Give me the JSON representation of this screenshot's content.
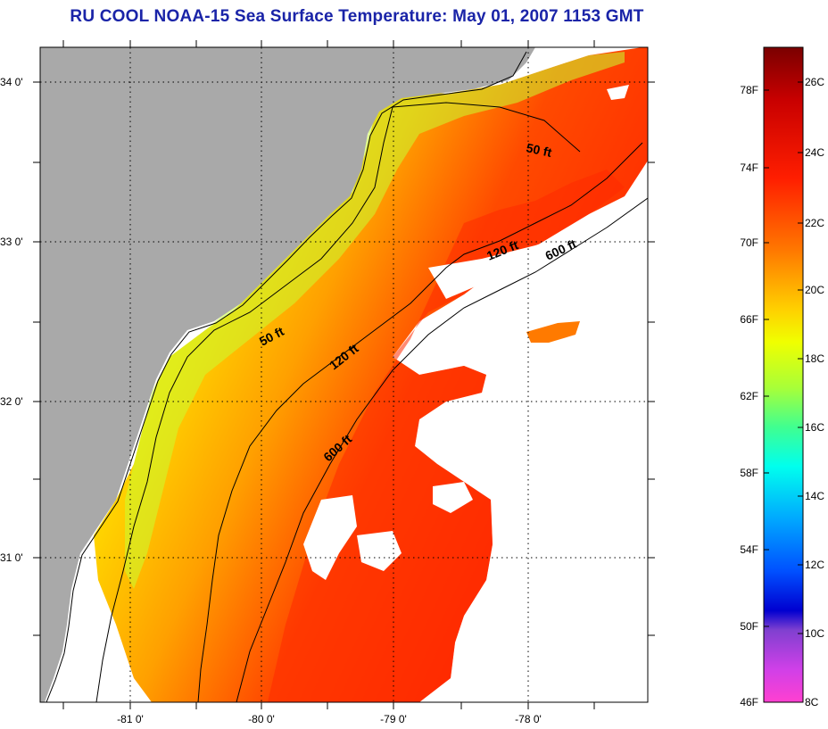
{
  "title": "RU COOL  NOAA-15  Sea Surface Temperature:  May 01, 2007 1153 GMT",
  "axes": {
    "x_ticks": [
      "-81 0'",
      "-80 0'",
      "-79 0'",
      "-78 0'"
    ],
    "y_ticks": [
      "34 0'",
      "33 0'",
      "32 0'",
      "31 0'"
    ]
  },
  "isobaths": {
    "shallow_north": "50 ft",
    "shallow_south": "50 ft",
    "mid_north": "120 ft",
    "mid_south": "120 ft",
    "deep_north": "600 ft",
    "deep_south": "600 ft"
  },
  "colorbar": {
    "left_labels": [
      "78F",
      "74F",
      "70F",
      "66F",
      "62F",
      "58F",
      "54F",
      "50F",
      "46F"
    ],
    "right_labels": [
      "26C",
      "24C",
      "22C",
      "20C",
      "18C",
      "16C",
      "14C",
      "12C",
      "10C",
      "8C"
    ],
    "colors": [
      "#7a0000",
      "#c80000",
      "#ff1e00",
      "#ff7800",
      "#ffd000",
      "#f0ff00",
      "#a8ff38",
      "#40ff90",
      "#00ffee",
      "#00a8ff",
      "#0050ff",
      "#0000d0",
      "#8040d0",
      "#d040e8",
      "#ff40d0"
    ]
  },
  "colors": {
    "land": "#a9a9a9",
    "cloud": "#ffffff",
    "title": "#1a24a8"
  }
}
